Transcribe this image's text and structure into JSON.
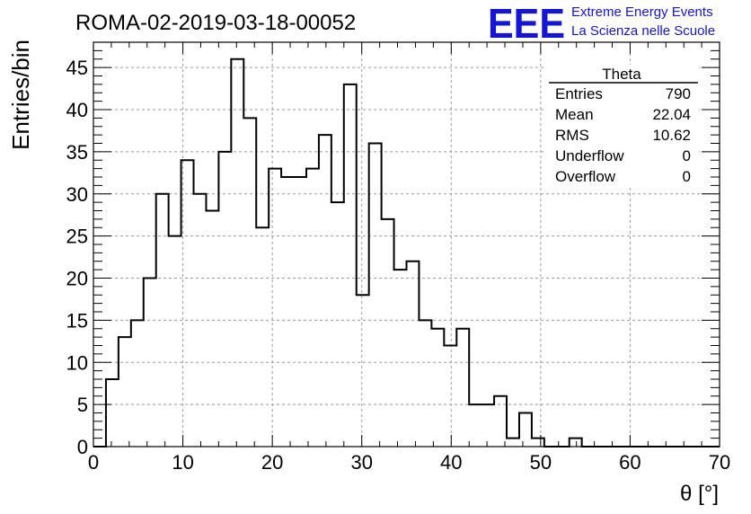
{
  "title": "ROMA-02-2019-03-18-00052",
  "logo": {
    "text": "EEE",
    "line1": "Extreme Energy Events",
    "line2": "La Scienza nelle Scuole",
    "color": "#1515d6"
  },
  "stats": {
    "name": "Theta",
    "rows": [
      {
        "label": "Entries",
        "value": "790"
      },
      {
        "label": "Mean",
        "value": "22.04"
      },
      {
        "label": "RMS",
        "value": "10.62"
      },
      {
        "label": "Underflow",
        "value": "0"
      },
      {
        "label": "Overflow",
        "value": "0"
      }
    ]
  },
  "chart_data": {
    "type": "bar",
    "style": "step-histogram",
    "title": "ROMA-02-2019-03-18-00052",
    "xlabel": "θ [°]",
    "ylabel": "Entries/bin",
    "xlim": [
      0,
      70
    ],
    "ylim": [
      0,
      48
    ],
    "xticks": [
      0,
      10,
      20,
      30,
      40,
      50,
      60,
      70
    ],
    "yticks": [
      0,
      5,
      10,
      15,
      20,
      25,
      30,
      35,
      40,
      45
    ],
    "grid": true,
    "bin_width": 1.4,
    "bin_edges_start": 0,
    "values": [
      0,
      8,
      13,
      15,
      20,
      30,
      25,
      34,
      30,
      28,
      35,
      46,
      39,
      26,
      33,
      32,
      32,
      33,
      37,
      29,
      43,
      18,
      36,
      27,
      21,
      22,
      15,
      14,
      12,
      14,
      5,
      5,
      6,
      1,
      4,
      1,
      0,
      0,
      1,
      0,
      0,
      0,
      0,
      0,
      0,
      0,
      0,
      0,
      0,
      0
    ]
  }
}
